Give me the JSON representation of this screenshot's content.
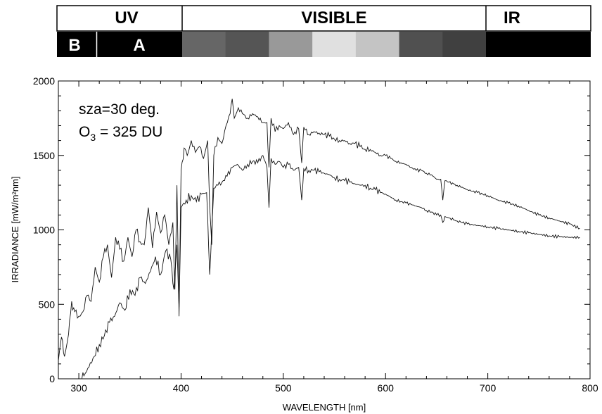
{
  "spectrum_bar": {
    "labels": {
      "uv": "UV",
      "visible": "VISIBLE",
      "ir": "IR",
      "uv_b": "B",
      "uv_a": "A"
    },
    "visible_gray_levels": [
      "#666666",
      "#555555",
      "#999999",
      "#e0e0e0",
      "#c4c4c4",
      "#505050",
      "#404040"
    ]
  },
  "chart_data": {
    "type": "line",
    "title": "",
    "xlabel": "WAVELENGTH [nm]",
    "ylabel": "IRRADIANCE [mW/m²nm]",
    "xlim": [
      280,
      800
    ],
    "ylim": [
      0,
      2000
    ],
    "xticks": [
      300,
      400,
      500,
      600,
      700,
      800
    ],
    "yticks": [
      0,
      500,
      1000,
      1500,
      2000
    ],
    "annotations": {
      "sza": "sza=30 deg.",
      "o3_prefix": "O",
      "o3_sub": "3",
      "o3_suffix": " = 325 DU"
    },
    "series": [
      {
        "x": [
          280,
          283,
          286,
          290,
          293,
          296,
          300,
          304,
          308,
          312,
          316,
          320,
          324,
          328,
          332,
          336,
          340,
          344,
          348,
          352,
          356,
          360,
          364,
          368,
          372,
          376,
          380,
          384,
          388,
          392,
          394,
          396,
          398,
          400,
          403,
          406,
          410,
          414,
          418,
          422,
          426,
          428,
          430,
          432,
          436,
          440,
          444,
          448,
          450,
          452,
          456,
          460,
          465,
          470,
          475,
          480,
          484,
          486,
          488,
          492,
          496,
          500,
          505,
          510,
          515,
          518,
          520,
          525,
          530,
          535,
          540,
          545,
          550,
          555,
          560,
          565,
          570,
          575,
          580,
          585,
          590,
          595,
          600,
          605,
          610,
          615,
          620,
          625,
          630,
          635,
          640,
          645,
          650,
          654,
          656,
          658,
          662,
          670,
          680,
          690,
          700,
          710,
          720,
          730,
          740,
          750,
          760,
          770,
          780,
          790
        ],
        "values": [
          120,
          280,
          150,
          300,
          520,
          450,
          420,
          450,
          560,
          520,
          750,
          650,
          820,
          900,
          680,
          950,
          870,
          790,
          950,
          820,
          1000,
          920,
          900,
          1150,
          880,
          1120,
          980,
          1100,
          900,
          1050,
          600,
          1300,
          420,
          1400,
          1550,
          1500,
          1600,
          1520,
          1560,
          1480,
          1600,
          1150,
          900,
          1500,
          1620,
          1580,
          1700,
          1780,
          1880,
          1750,
          1820,
          1780,
          1750,
          1780,
          1760,
          1720,
          1720,
          1420,
          1750,
          1660,
          1700,
          1680,
          1720,
          1640,
          1680,
          1450,
          1690,
          1640,
          1660,
          1650,
          1640,
          1630,
          1610,
          1600,
          1600,
          1580,
          1580,
          1560,
          1540,
          1540,
          1520,
          1500,
          1500,
          1480,
          1460,
          1450,
          1440,
          1420,
          1400,
          1400,
          1380,
          1370,
          1340,
          1340,
          1200,
          1330,
          1320,
          1300,
          1270,
          1250,
          1230,
          1200,
          1180,
          1160,
          1130,
          1100,
          1080,
          1060,
          1040,
          1010
        ]
      },
      {
        "x": [
          302,
          305,
          310,
          315,
          320,
          325,
          330,
          335,
          340,
          345,
          350,
          355,
          360,
          365,
          370,
          375,
          380,
          385,
          390,
          393,
          396,
          398,
          400,
          405,
          410,
          415,
          420,
          425,
          428,
          430,
          432,
          436,
          440,
          445,
          450,
          455,
          460,
          465,
          470,
          475,
          480,
          484,
          486,
          488,
          492,
          496,
          500,
          505,
          510,
          515,
          518,
          520,
          525,
          530,
          535,
          540,
          545,
          550,
          555,
          560,
          565,
          570,
          575,
          580,
          585,
          590,
          595,
          600,
          605,
          610,
          615,
          620,
          625,
          630,
          635,
          640,
          645,
          650,
          654,
          656,
          658,
          662,
          670,
          680,
          690,
          700,
          710,
          720,
          730,
          740,
          750,
          760,
          770,
          780,
          790
        ],
        "values": [
          0,
          20,
          80,
          150,
          230,
          290,
          380,
          420,
          510,
          460,
          600,
          560,
          680,
          640,
          720,
          820,
          700,
          860,
          800,
          600,
          900,
          480,
          1150,
          1200,
          1230,
          1190,
          1240,
          1250,
          700,
          1000,
          1280,
          1300,
          1320,
          1360,
          1420,
          1440,
          1400,
          1440,
          1460,
          1450,
          1500,
          1420,
          1150,
          1480,
          1440,
          1460,
          1420,
          1440,
          1400,
          1420,
          1200,
          1410,
          1400,
          1400,
          1390,
          1380,
          1370,
          1350,
          1340,
          1330,
          1320,
          1310,
          1300,
          1300,
          1280,
          1270,
          1250,
          1240,
          1220,
          1200,
          1190,
          1180,
          1170,
          1160,
          1150,
          1130,
          1120,
          1100,
          1100,
          1050,
          1090,
          1080,
          1060,
          1040,
          1030,
          1020,
          1010,
          1000,
          990,
          980,
          970,
          960,
          955,
          950,
          950
        ]
      }
    ]
  }
}
